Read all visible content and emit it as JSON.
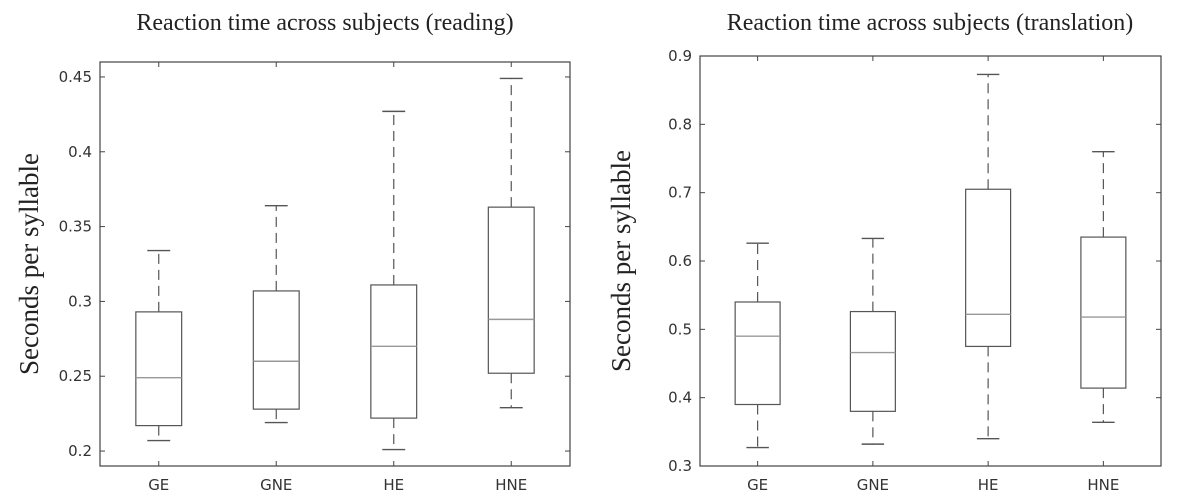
{
  "chart_data": [
    {
      "type": "boxplot",
      "title": "Reaction time across subjects (reading)",
      "ylabel": "Seconds per syllable",
      "xlabel": "",
      "categories": [
        "GE",
        "GNE",
        "HE",
        "HNE"
      ],
      "ylim": [
        0.19,
        0.46
      ],
      "yticks": [
        0.2,
        0.25,
        0.3,
        0.35,
        0.4,
        0.45
      ],
      "ytick_labels": [
        "0.2",
        "0.25",
        "0.3",
        "0.35",
        "0.4",
        "0.45"
      ],
      "grid": false,
      "boxes": [
        {
          "category": "GE",
          "whisker_low": 0.207,
          "q1": 0.217,
          "median": 0.249,
          "q3": 0.293,
          "whisker_high": 0.334
        },
        {
          "category": "GNE",
          "whisker_low": 0.219,
          "q1": 0.228,
          "median": 0.26,
          "q3": 0.307,
          "whisker_high": 0.364
        },
        {
          "category": "HE",
          "whisker_low": 0.201,
          "q1": 0.222,
          "median": 0.27,
          "q3": 0.311,
          "whisker_high": 0.427
        },
        {
          "category": "HNE",
          "whisker_low": 0.229,
          "q1": 0.252,
          "median": 0.288,
          "q3": 0.363,
          "whisker_high": 0.449
        }
      ]
    },
    {
      "type": "boxplot",
      "title": "Reaction time across subjects (translation)",
      "ylabel": "Seconds per syllable",
      "xlabel": "",
      "categories": [
        "GE",
        "GNE",
        "HE",
        "HNE"
      ],
      "ylim": [
        0.3,
        0.9
      ],
      "yticks": [
        0.3,
        0.4,
        0.5,
        0.6,
        0.7,
        0.8,
        0.9
      ],
      "ytick_labels": [
        "0.3",
        "0.4",
        "0.5",
        "0.6",
        "0.7",
        "0.8",
        "0.9"
      ],
      "grid": false,
      "boxes": [
        {
          "category": "GE",
          "whisker_low": 0.327,
          "q1": 0.39,
          "median": 0.49,
          "q3": 0.54,
          "whisker_high": 0.626
        },
        {
          "category": "GNE",
          "whisker_low": 0.332,
          "q1": 0.38,
          "median": 0.466,
          "q3": 0.526,
          "whisker_high": 0.633
        },
        {
          "category": "HE",
          "whisker_low": 0.34,
          "q1": 0.475,
          "median": 0.522,
          "q3": 0.705,
          "whisker_high": 0.873
        },
        {
          "category": "HNE",
          "whisker_low": 0.364,
          "q1": 0.414,
          "median": 0.518,
          "q3": 0.635,
          "whisker_high": 0.76
        }
      ]
    }
  ]
}
